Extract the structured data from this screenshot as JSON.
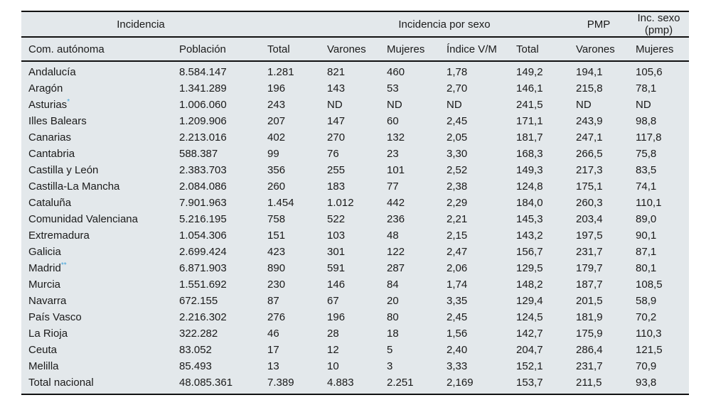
{
  "header_groups": [
    {
      "label": "Incidencia",
      "span": 2
    },
    {
      "label": "",
      "span": 2
    },
    {
      "label": "Incidencia por sexo",
      "span": 3
    },
    {
      "label": "PMP",
      "span": 1
    },
    {
      "label": "Inc. sexo (pmp)",
      "span": 2
    }
  ],
  "columns": [
    "Com. autónoma",
    "Población",
    "Total",
    "Varones",
    "Mujeres",
    "Índice V/M",
    "Total",
    "Varones",
    "Mujeres"
  ],
  "footnote_color": "#3ea0d8",
  "rows": [
    {
      "region": "Andalucía",
      "footnote": "",
      "values": [
        "8.584.147",
        "1.281",
        "821",
        "460",
        "1,78",
        "149,2",
        "194,1",
        "105,6"
      ]
    },
    {
      "region": "Aragón",
      "footnote": "",
      "values": [
        "1.341.289",
        "196",
        "143",
        "53",
        "2,70",
        "146,1",
        "215,8",
        "78,1"
      ]
    },
    {
      "region": "Asturias",
      "footnote": "*",
      "values": [
        "1.006.060",
        "243",
        "ND",
        "ND",
        "ND",
        "241,5",
        "ND",
        "ND"
      ]
    },
    {
      "region": "Illes Balears",
      "footnote": "",
      "values": [
        "1.209.906",
        "207",
        "147",
        "60",
        "2,45",
        "171,1",
        "243,9",
        "98,8"
      ]
    },
    {
      "region": "Canarias",
      "footnote": "",
      "values": [
        "2.213.016",
        "402",
        "270",
        "132",
        "2,05",
        "181,7",
        "247,1",
        "117,8"
      ]
    },
    {
      "region": "Cantabria",
      "footnote": "",
      "values": [
        "588.387",
        "99",
        "76",
        "23",
        "3,30",
        "168,3",
        "266,5",
        "75,8"
      ]
    },
    {
      "region": "Castilla y León",
      "footnote": "",
      "values": [
        "2.383.703",
        "356",
        "255",
        "101",
        "2,52",
        "149,3",
        "217,3",
        "83,5"
      ]
    },
    {
      "region": "Castilla-La Mancha",
      "footnote": "",
      "values": [
        "2.084.086",
        "260",
        "183",
        "77",
        "2,38",
        "124,8",
        "175,1",
        "74,1"
      ]
    },
    {
      "region": "Cataluña",
      "footnote": "",
      "values": [
        "7.901.963",
        "1.454",
        "1.012",
        "442",
        "2,29",
        "184,0",
        "260,3",
        "110,1"
      ]
    },
    {
      "region": "Comunidad Valenciana",
      "footnote": "",
      "values": [
        "5.216.195",
        "758",
        "522",
        "236",
        "2,21",
        "145,3",
        "203,4",
        "89,0"
      ]
    },
    {
      "region": "Extremadura",
      "footnote": "",
      "values": [
        "1.054.306",
        "151",
        "103",
        "48",
        "2,15",
        "143,2",
        "197,5",
        "90,1"
      ]
    },
    {
      "region": "Galicia",
      "footnote": "",
      "values": [
        "2.699.424",
        "423",
        "301",
        "122",
        "2,47",
        "156,7",
        "231,7",
        "87,1"
      ]
    },
    {
      "region": "Madrid",
      "footnote": "**",
      "values": [
        "6.871.903",
        "890",
        "591",
        "287",
        "2,06",
        "129,5",
        "179,7",
        "80,1"
      ]
    },
    {
      "region": "Murcia",
      "footnote": "",
      "values": [
        "1.551.692",
        "230",
        "146",
        "84",
        "1,74",
        "148,2",
        "187,7",
        "108,5"
      ]
    },
    {
      "region": "Navarra",
      "footnote": "",
      "values": [
        "672.155",
        "87",
        "67",
        "20",
        "3,35",
        "129,4",
        "201,5",
        "58,9"
      ]
    },
    {
      "region": "País Vasco",
      "footnote": "",
      "values": [
        "2.216.302",
        "276",
        "196",
        "80",
        "2,45",
        "124,5",
        "181,9",
        "70,2"
      ]
    },
    {
      "region": "La Rioja",
      "footnote": "",
      "values": [
        "322.282",
        "46",
        "28",
        "18",
        "1,56",
        "142,7",
        "175,9",
        "110,3"
      ]
    },
    {
      "region": "Ceuta",
      "footnote": "",
      "values": [
        "83.052",
        "17",
        "12",
        "5",
        "2,40",
        "204,7",
        "286,4",
        "121,5"
      ]
    },
    {
      "region": "Melilla",
      "footnote": "",
      "values": [
        "85.493",
        "13",
        "10",
        "3",
        "3,33",
        "152,1",
        "231,7",
        "70,9"
      ]
    },
    {
      "region": "Total nacional",
      "footnote": "",
      "values": [
        "48.085.361",
        "7.389",
        "4.883",
        "2.251",
        "2,169",
        "153,7",
        "211,5",
        "93,8"
      ]
    }
  ]
}
